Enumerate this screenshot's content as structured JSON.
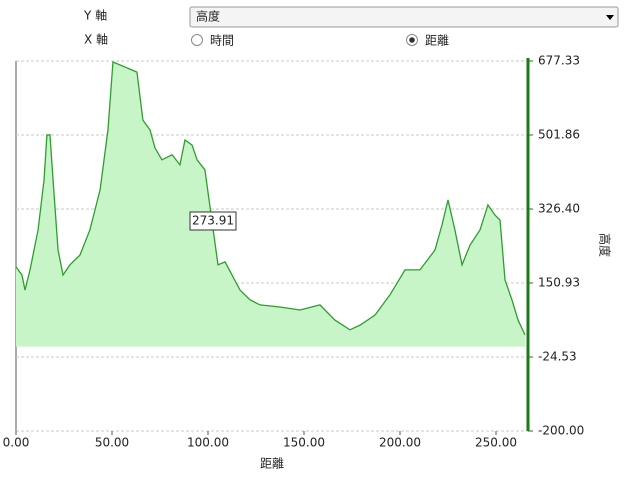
{
  "controls": {
    "y_axis_label": "Y 軸",
    "y_axis_selected": "高度",
    "x_axis_label": "X 軸",
    "x_options": [
      {
        "label": "時間",
        "checked": false
      },
      {
        "label": "距離",
        "checked": true
      }
    ]
  },
  "chart_data": {
    "type": "area",
    "x_label": "距離",
    "y_label": "高度",
    "annotation": "273.91",
    "yaxis_position": "right",
    "grid": true,
    "line_color": "#2e9e2e",
    "fill_color": "#c8f5c8",
    "axis_color": "#1a7a1a",
    "xlim": [
      0,
      266.67
    ],
    "ylim": [
      -200,
      677.33
    ],
    "xticks": [
      {
        "value": 0,
        "label": "0.00"
      },
      {
        "value": 50,
        "label": "50.00"
      },
      {
        "value": 100,
        "label": "100.00"
      },
      {
        "value": 150,
        "label": "150.00"
      },
      {
        "value": 200,
        "label": "200.00"
      },
      {
        "value": 250,
        "label": "250.00"
      }
    ],
    "yticks": [
      {
        "value": -200,
        "label": "-200.00"
      },
      -24.53,
      150.93,
      {
        "value": 326.4,
        "label": "326.40"
      },
      501.86,
      677.33
    ],
    "series": [
      {
        "name": "高度",
        "x": [
          0,
          3.1,
          4.7,
          7.3,
          11.5,
          14.6,
          16.1,
          17.7,
          19.3,
          21.9,
          24.5,
          28.1,
          33.3,
          38.5,
          43.8,
          47.9,
          50.5,
          56.8,
          63,
          66.1,
          69.8,
          72.4,
          76,
          81.3,
          85.4,
          88,
          91.7,
          94.3,
          98.4,
          102,
          105.2,
          108.9,
          112.5,
          116.7,
          121.9,
          127.1,
          137.5,
          147.9,
          158.3,
          166.1,
          173.9,
          179.2,
          187,
          194.8,
          202.6,
          210.4,
          218.2,
          221.9,
          225,
          228.6,
          232.3,
          236.5,
          241.7,
          245.8,
          249.5,
          252.1,
          254.7,
          258.3,
          261.5,
          265.1
        ],
        "values": [
          189,
          170,
          134,
          182,
          277,
          395,
          502,
          502,
          395,
          229,
          170,
          194,
          217,
          277,
          372,
          514,
          675,
          663,
          651,
          537,
          514,
          471,
          443,
          455,
          431,
          490,
          478,
          443,
          419,
          300,
          194,
          201,
          170,
          134,
          111,
          99,
          94,
          87,
          99,
          63,
          40,
          51,
          75,
          123,
          182,
          182,
          229,
          289,
          348,
          277,
          194,
          241,
          277,
          336,
          312,
          300,
          158,
          111,
          63,
          28
        ]
      }
    ]
  }
}
